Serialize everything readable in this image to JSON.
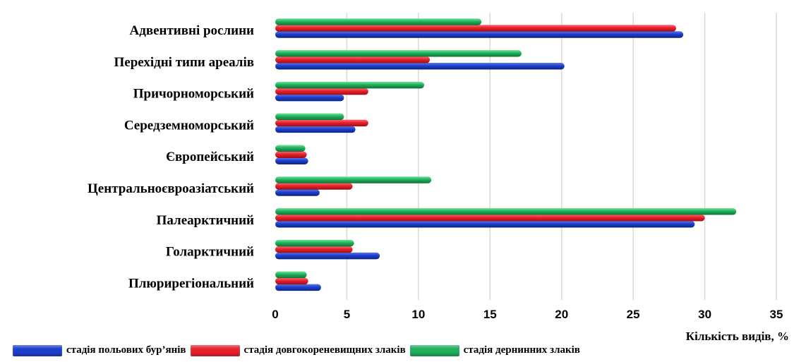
{
  "chart_data": {
    "type": "bar",
    "orientation": "horizontal",
    "categories": [
      "Адвентивні рослини",
      "Перехідні типи ареалів",
      "Причорноморський",
      "Середземноморський",
      "Європейський",
      "Центральноєвроазіатський",
      "Палеарктичний",
      "Голарктичний",
      "Плюрирегіональний"
    ],
    "series": [
      {
        "name": "стадія польових бур’янів",
        "color": "#1c3fcc",
        "values": [
          28.5,
          20.2,
          4.8,
          5.6,
          2.3,
          3.1,
          29.3,
          7.3,
          3.2
        ]
      },
      {
        "name": "стадія довгокореневищних злаків",
        "color": "#e8202a",
        "values": [
          28.0,
          10.8,
          6.5,
          6.5,
          2.2,
          5.4,
          30.0,
          5.4,
          2.3
        ]
      },
      {
        "name": "стадія дернинних злаків",
        "color": "#1fb05a",
        "values": [
          14.4,
          17.2,
          10.4,
          4.8,
          2.1,
          10.9,
          32.2,
          5.5,
          2.2
        ]
      }
    ],
    "xlabel": "Кількість видів, %",
    "xlim": [
      0,
      35
    ],
    "xticks": [
      0,
      5,
      10,
      15,
      20,
      25,
      30,
      35
    ],
    "grid": true,
    "legend_position": "bottom"
  }
}
